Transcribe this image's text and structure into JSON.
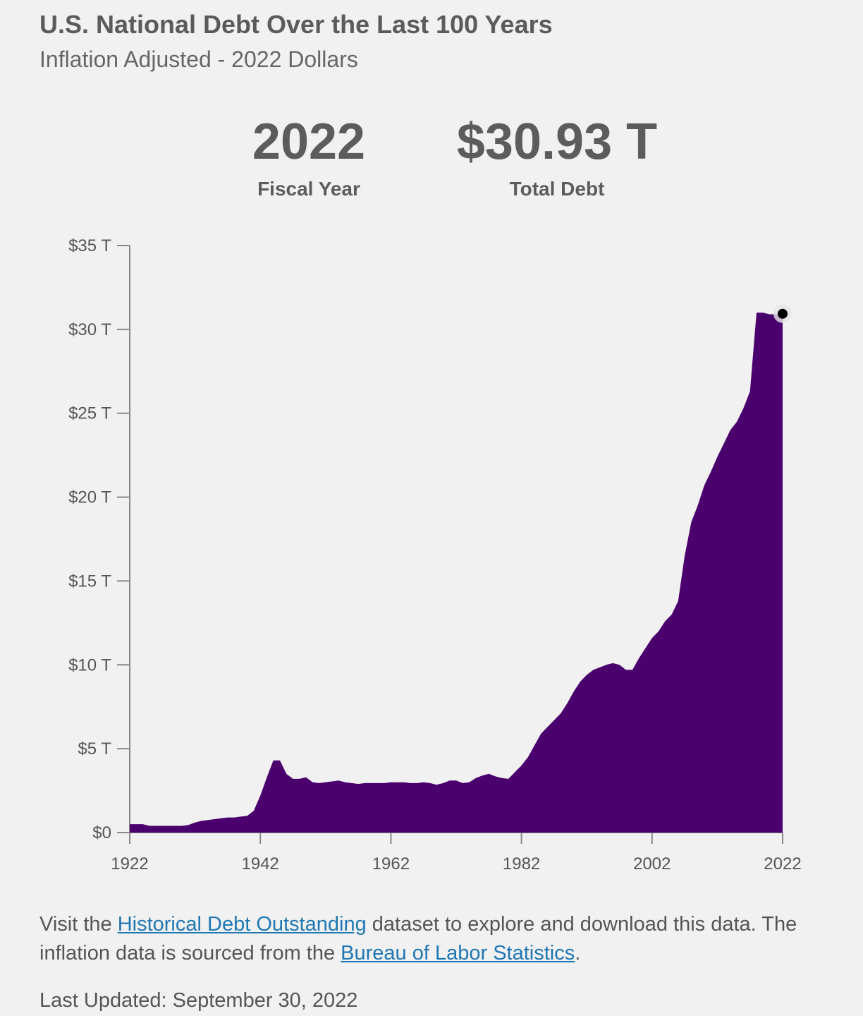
{
  "header": {
    "title": "U.S. National Debt Over the Last 100 Years",
    "subtitle": "Inflation Adjusted - 2022 Dollars"
  },
  "stats": {
    "year_value": "2022",
    "year_label": "Fiscal Year",
    "debt_value": "$30.93 T",
    "debt_label": "Total Debt"
  },
  "footer": {
    "prefix": "Visit the ",
    "link1": "Historical Debt Outstanding",
    "middle": " dataset to explore and download this data. The inflation data is sourced from the ",
    "link2": "Bureau of Labor Statistics",
    "suffix": ".",
    "updated": "Last Updated: September 30, 2022"
  },
  "colors": {
    "area_fill": "#4a006d",
    "axis": "#888888",
    "link": "#1f77b4",
    "marker": "#000000"
  },
  "chart_data": {
    "type": "area",
    "title": "",
    "xlabel": "",
    "ylabel": "",
    "xlim": [
      1922,
      2022
    ],
    "ylim": [
      0,
      35
    ],
    "y_ticks": [
      0,
      5,
      10,
      15,
      20,
      25,
      30,
      35
    ],
    "y_tick_labels": [
      "$0",
      "$5 T",
      "$10 T",
      "$15 T",
      "$20 T",
      "$25 T",
      "$30 T",
      "$35 T"
    ],
    "x_ticks": [
      1922,
      1942,
      1962,
      1982,
      2002,
      2022
    ],
    "x_tick_labels": [
      "1922",
      "1942",
      "1962",
      "1982",
      "2002",
      "2022"
    ],
    "grid": false,
    "highlight_point": {
      "x": 2022,
      "y": 30.93
    },
    "series": [
      {
        "x": [
          1922,
          1923,
          1924,
          1925,
          1926,
          1927,
          1928,
          1929,
          1930,
          1931,
          1932,
          1933,
          1934,
          1935,
          1936,
          1937,
          1938,
          1939,
          1940,
          1941,
          1942,
          1943,
          1944,
          1945,
          1946,
          1947,
          1948,
          1949,
          1950,
          1951,
          1952,
          1953,
          1954,
          1955,
          1956,
          1957,
          1958,
          1959,
          1960,
          1961,
          1962,
          1963,
          1964,
          1965,
          1966,
          1967,
          1968,
          1969,
          1970,
          1971,
          1972,
          1973,
          1974,
          1975,
          1976,
          1977,
          1978,
          1979,
          1980,
          1981,
          1982,
          1983,
          1984,
          1985,
          1986,
          1987,
          1988,
          1989,
          1990,
          1991,
          1992,
          1993,
          1994,
          1995,
          1996,
          1997,
          1998,
          1999,
          2000,
          2001,
          2002,
          2003,
          2004,
          2005,
          2006,
          2007,
          2008,
          2009,
          2010,
          2011,
          2012,
          2013,
          2014,
          2015,
          2016,
          2017,
          2018,
          2019,
          2020,
          2021,
          2022
        ],
        "y": [
          0.5,
          0.5,
          0.5,
          0.4,
          0.4,
          0.4,
          0.4,
          0.4,
          0.4,
          0.45,
          0.6,
          0.7,
          0.75,
          0.8,
          0.85,
          0.9,
          0.9,
          0.95,
          1.0,
          1.3,
          2.2,
          3.3,
          4.3,
          4.3,
          3.5,
          3.2,
          3.2,
          3.3,
          3.0,
          2.95,
          3.0,
          3.05,
          3.1,
          3.0,
          2.95,
          2.9,
          2.95,
          2.95,
          2.95,
          2.95,
          3.0,
          3.0,
          3.0,
          2.95,
          2.95,
          3.0,
          2.95,
          2.85,
          2.95,
          3.1,
          3.1,
          2.95,
          3.0,
          3.25,
          3.4,
          3.5,
          3.35,
          3.25,
          3.2,
          3.6,
          4.0,
          4.5,
          5.2,
          5.9,
          6.3,
          6.7,
          7.1,
          7.7,
          8.4,
          9.0,
          9.4,
          9.7,
          9.85,
          10.0,
          10.1,
          10.0,
          9.7,
          9.7,
          10.4,
          11.0,
          11.6,
          12.0,
          12.6,
          13.0,
          13.8,
          16.5,
          18.5,
          19.5,
          20.7,
          21.5,
          22.4,
          23.2,
          24.0,
          24.5,
          25.3,
          26.3,
          31.0,
          31.0,
          30.9,
          30.9,
          30.93
        ]
      }
    ]
  }
}
